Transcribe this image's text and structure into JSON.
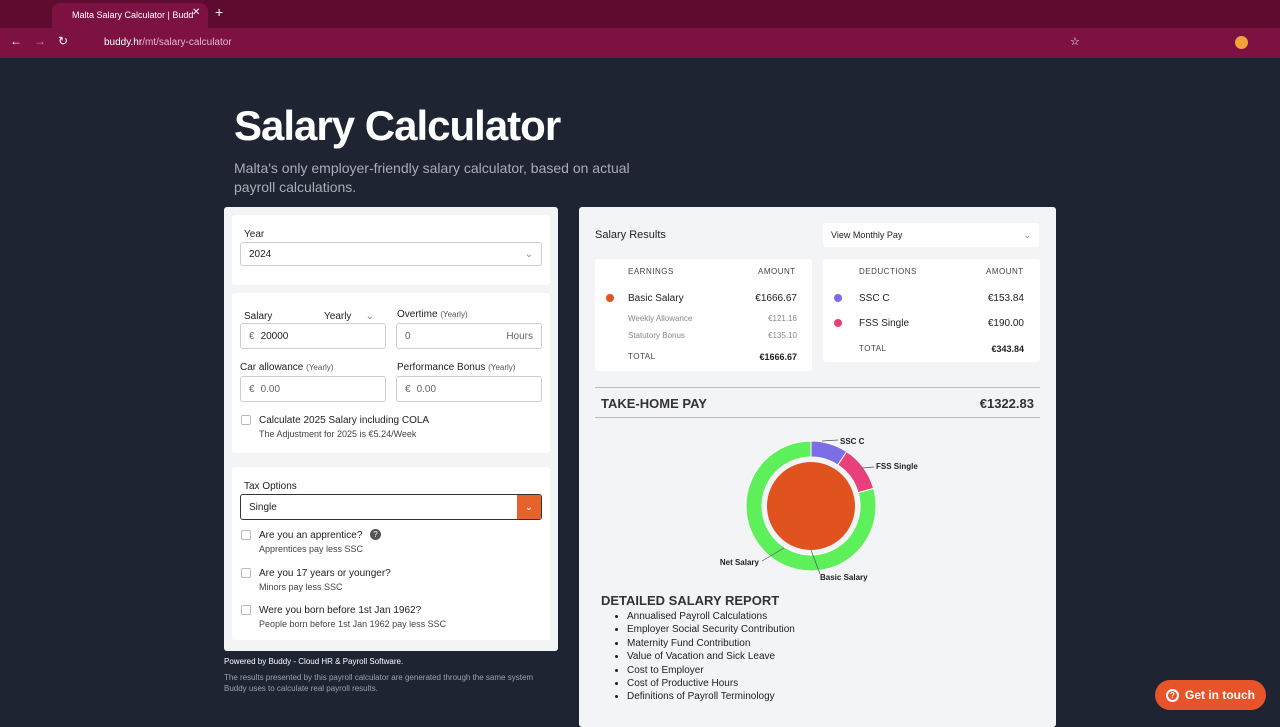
{
  "browser": {
    "tab_title": "Malta Salary Calculator | Budd",
    "url_host": "buddy.hr",
    "url_path": "/mt/salary-calculator"
  },
  "header": {
    "title": "Salary Calculator",
    "subtitle_line1": "Malta's only employer-friendly salary calculator, based on actual",
    "subtitle_line2": "payroll calculations."
  },
  "form": {
    "currency": "€",
    "year_label": "Year",
    "year_value": "2024",
    "salary_label": "Salary",
    "salary_period": "Yearly",
    "salary_value": "20000",
    "overtime_label": "Overtime",
    "overtime_note": "(Yearly)",
    "overtime_value": "0",
    "overtime_unit": "Hours",
    "car_label": "Car allowance",
    "car_note": "(Yearly)",
    "car_value": "0.00",
    "bonus_label": "Performance Bonus",
    "bonus_note": "(Yearly)",
    "bonus_value": "0.00",
    "cola_label": "Calculate 2025 Salary including COLA",
    "cola_note": "The Adjustment for 2025 is €5.24/Week",
    "tax_label": "Tax Options",
    "tax_value": "Single",
    "options": [
      {
        "label": "Are you an apprentice?",
        "note": "Apprentices pay less SSC"
      },
      {
        "label": "Are you 17 years or younger?",
        "note": "Minors pay less SSC"
      },
      {
        "label": "Were you born before 1st Jan 1962?",
        "note": "People born before 1st Jan 1962 pay less SSC"
      }
    ]
  },
  "results": {
    "title": "Salary Results",
    "view": "View Monthly Pay",
    "earnings": {
      "header": "EARNINGS",
      "amount_header": "AMOUNT",
      "rows": [
        {
          "label": "Basic Salary",
          "amount": "€1666.67"
        }
      ],
      "sub_rows": [
        {
          "label": "Weekly Allowance",
          "amount": "€121.16"
        },
        {
          "label": "Statutory Bonus",
          "amount": "€135.10"
        }
      ],
      "total_label": "TOTAL",
      "total": "€1666.67"
    },
    "deductions": {
      "header": "DEDUCTIONS",
      "amount_header": "AMOUNT",
      "rows": [
        {
          "label": "SSC C",
          "amount": "€153.84"
        },
        {
          "label": "FSS Single",
          "amount": "€190.00"
        }
      ],
      "total_label": "TOTAL",
      "total": "€343.84"
    },
    "take_home_label": "TAKE-HOME PAY",
    "take_home_value": "€1322.83",
    "donut": {
      "net_label": "Net Salary",
      "basic_label": "Basic Salary"
    },
    "report_title": "DETAILED SALARY REPORT",
    "report_items": [
      "Annualised Payroll Calculations",
      "Employer Social Security Contribution",
      "Maternity Fund Contribution",
      "Value of Vacation and Sick Leave",
      "Cost to Employer",
      "Cost of Productive Hours",
      "Definitions of Payroll Terminology"
    ]
  },
  "footer": {
    "powered": "Powered by Buddy - Cloud HR & Payroll Software.",
    "disclaimer_line1": "The results presented by this payroll calculator are generated through the same system",
    "disclaimer_line2": "Buddy uses to calculate real payroll results."
  },
  "cta": "Get in touch"
}
